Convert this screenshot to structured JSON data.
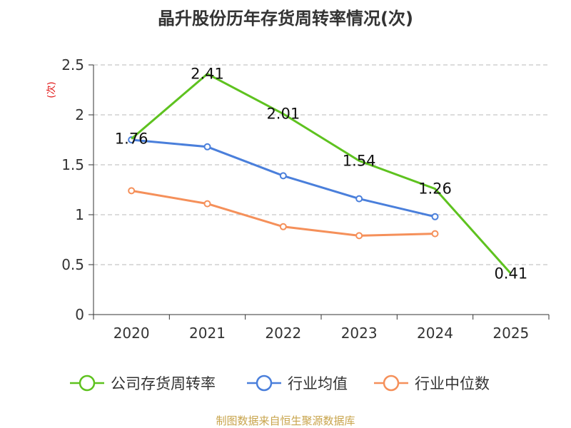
{
  "chart_data": {
    "type": "line",
    "title": "晶升股份历年存货周转率情况(次)",
    "ylabel": "(次)",
    "xlabel": "",
    "categories": [
      "2020",
      "2021",
      "2022",
      "2023",
      "2024",
      "2025"
    ],
    "ylim": [
      0,
      2.5
    ],
    "yticks": [
      "0",
      "0.5",
      "1",
      "1.5",
      "2",
      "2.5"
    ],
    "grid": true,
    "legend_position": "bottom",
    "series": [
      {
        "name": "公司存货周转率",
        "color": "#5ec21f",
        "values": [
          1.76,
          2.41,
          2.01,
          1.54,
          1.26,
          0.41
        ],
        "labels": [
          "1.76",
          "2.41",
          "2.01",
          "1.54",
          "1.26",
          "0.41"
        ],
        "show_markers": false
      },
      {
        "name": "行业均值",
        "color": "#4a7fdb",
        "values": [
          1.75,
          1.68,
          1.39,
          1.16,
          0.98,
          null
        ],
        "show_markers": true
      },
      {
        "name": "行业中位数",
        "color": "#f5905a",
        "values": [
          1.24,
          1.11,
          0.88,
          0.79,
          0.81,
          null
        ],
        "show_markers": true
      }
    ],
    "source": "制图数据来自恒生聚源数据库"
  }
}
